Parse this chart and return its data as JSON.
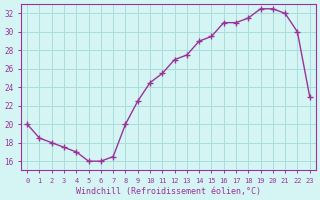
{
  "x": [
    0,
    1,
    2,
    3,
    4,
    5,
    6,
    7,
    8,
    9,
    10,
    11,
    12,
    13,
    14,
    15,
    16,
    17,
    18,
    19,
    20,
    21,
    22,
    23
  ],
  "y": [
    20,
    18.5,
    18,
    17.5,
    17,
    16,
    16,
    16.5,
    20,
    22.5,
    24.5,
    25.5,
    27,
    27.5,
    29,
    29.5,
    31,
    31,
    31.5,
    32.5,
    32.5,
    32,
    30,
    23
  ],
  "line_color": "#993399",
  "marker": "+",
  "background_color": "#d5f5f5",
  "grid_color": "#aadddd",
  "xlabel": "Windchill (Refroidissement éolien,°C)",
  "xlabel_color": "#993399",
  "tick_color": "#993399",
  "ylim": [
    15,
    33
  ],
  "yticks": [
    16,
    18,
    20,
    22,
    24,
    26,
    28,
    30,
    32
  ],
  "xticks": [
    0,
    1,
    2,
    3,
    4,
    5,
    6,
    7,
    8,
    9,
    10,
    11,
    12,
    13,
    14,
    15,
    16,
    17,
    18,
    19,
    20,
    21,
    22,
    23
  ],
  "xtick_labels": [
    "0",
    "1",
    "2",
    "3",
    "4",
    "5",
    "6",
    "7",
    "8",
    "9",
    "10",
    "11",
    "12",
    "13",
    "14",
    "15",
    "16",
    "17",
    "18",
    "19",
    "20",
    "21",
    "22",
    "23"
  ],
  "spine_color": "#993399"
}
